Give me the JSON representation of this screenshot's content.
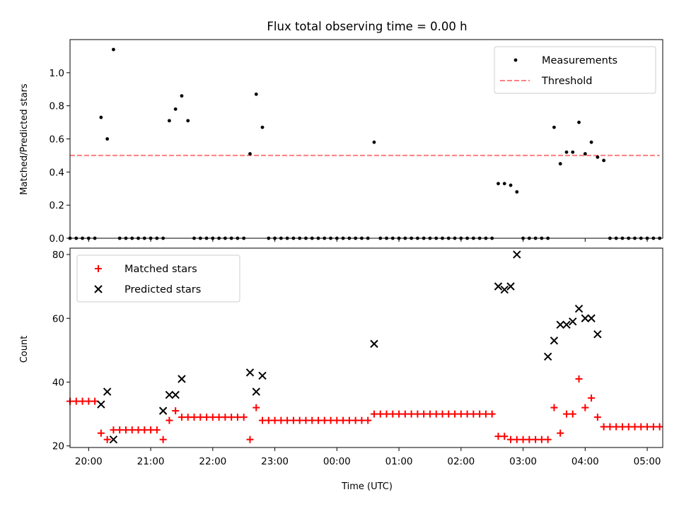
{
  "title": "Flux total observing time = 0.00 h",
  "chart_data": [
    {
      "type": "scatter",
      "ylabel": "Matched/Predicted stars",
      "ylim": [
        0,
        1.2
      ],
      "yticks": [
        0.0,
        0.2,
        0.4,
        0.6,
        0.8,
        1.0
      ],
      "ytick_labels": [
        "0.0",
        "0.2",
        "0.4",
        "0.6",
        "0.8",
        "1.0"
      ],
      "legend_position": "top-right",
      "legend": [
        {
          "label": "Measurements",
          "marker": "dot",
          "color": "#000000"
        },
        {
          "label": "Threshold",
          "marker": "dashed-line",
          "color": "#ff7f7f"
        }
      ],
      "threshold": {
        "value": 0.5,
        "x_start": "19:42",
        "x_end": "05:12",
        "color": "#ff7f7f"
      },
      "series": [
        {
          "name": "Measurements",
          "color": "#000000",
          "x": [
            "19:42",
            "19:48",
            "19:54",
            "20:00",
            "20:06",
            "20:12",
            "20:18",
            "20:24",
            "20:30",
            "20:36",
            "20:42",
            "20:48",
            "20:54",
            "21:00",
            "21:06",
            "21:12",
            "21:18",
            "21:24",
            "21:30",
            "21:36",
            "21:42",
            "21:48",
            "21:54",
            "22:00",
            "22:06",
            "22:12",
            "22:18",
            "22:24",
            "22:30",
            "22:36",
            "22:42",
            "22:48",
            "22:54",
            "23:00",
            "23:06",
            "23:12",
            "23:18",
            "23:24",
            "23:30",
            "23:36",
            "23:42",
            "23:48",
            "23:54",
            "00:00",
            "00:06",
            "00:12",
            "00:18",
            "00:24",
            "00:30",
            "00:36",
            "00:42",
            "00:48",
            "00:54",
            "01:00",
            "01:06",
            "01:12",
            "01:18",
            "01:24",
            "01:30",
            "01:36",
            "01:42",
            "01:48",
            "01:54",
            "02:00",
            "02:06",
            "02:12",
            "02:18",
            "02:24",
            "02:30",
            "02:36",
            "02:42",
            "02:48",
            "02:54",
            "03:00",
            "03:06",
            "03:12",
            "03:18",
            "03:24",
            "03:30",
            "03:36",
            "03:42",
            "03:48",
            "03:54",
            "04:00",
            "04:06",
            "04:12",
            "04:18",
            "04:24",
            "04:30",
            "04:36",
            "04:42",
            "04:48",
            "04:54",
            "05:00",
            "05:06",
            "05:12"
          ],
          "y": [
            0,
            0,
            0,
            0,
            0,
            0.73,
            0.6,
            1.14,
            0,
            0,
            0,
            0,
            0,
            0,
            0,
            0,
            0.71,
            0.78,
            0.86,
            0.71,
            0,
            0,
            0,
            0,
            0,
            0,
            0,
            0,
            0,
            0.51,
            0.87,
            0.67,
            0,
            0,
            0,
            0,
            0,
            0,
            0,
            0,
            0,
            0,
            0,
            0,
            0,
            0,
            0,
            0,
            0,
            0.58,
            0,
            0,
            0,
            0,
            0,
            0,
            0,
            0,
            0,
            0,
            0,
            0,
            0,
            0,
            0,
            0,
            0,
            0,
            0,
            0.33,
            0.33,
            0.32,
            0.28,
            0,
            0,
            0,
            0,
            0,
            0.67,
            0.45,
            0.52,
            0.52,
            0.7,
            0.51,
            0.58,
            0.49,
            0.47,
            0,
            0,
            0,
            0,
            0,
            0,
            0,
            0,
            0
          ]
        }
      ]
    },
    {
      "type": "scatter",
      "xlabel": "Time (UTC)",
      "ylabel": "Count",
      "ylim": [
        19.5,
        82
      ],
      "yticks": [
        20,
        40,
        60,
        80
      ],
      "ytick_labels": [
        "20",
        "40",
        "60",
        "80"
      ],
      "xticks": [
        "20:00",
        "21:00",
        "22:00",
        "23:00",
        "00:00",
        "01:00",
        "02:00",
        "03:00",
        "04:00",
        "05:00"
      ],
      "legend_position": "top-left",
      "legend": [
        {
          "label": "Matched stars",
          "marker": "plus",
          "color": "#ff0000"
        },
        {
          "label": "Predicted stars",
          "marker": "x",
          "color": "#000000"
        }
      ],
      "series": [
        {
          "name": "Matched stars",
          "color": "#ff0000",
          "x": [
            "19:42",
            "19:48",
            "19:54",
            "20:00",
            "20:06",
            "20:12",
            "20:18",
            "20:24",
            "20:30",
            "20:36",
            "20:42",
            "20:48",
            "20:54",
            "21:00",
            "21:06",
            "21:12",
            "21:18",
            "21:24",
            "21:30",
            "21:36",
            "21:42",
            "21:48",
            "21:54",
            "22:00",
            "22:06",
            "22:12",
            "22:18",
            "22:24",
            "22:30",
            "22:36",
            "22:42",
            "22:48",
            "22:54",
            "23:00",
            "23:06",
            "23:12",
            "23:18",
            "23:24",
            "23:30",
            "23:36",
            "23:42",
            "23:48",
            "23:54",
            "00:00",
            "00:06",
            "00:12",
            "00:18",
            "00:24",
            "00:30",
            "00:36",
            "00:42",
            "00:48",
            "00:54",
            "01:00",
            "01:06",
            "01:12",
            "01:18",
            "01:24",
            "01:30",
            "01:36",
            "01:42",
            "01:48",
            "01:54",
            "02:00",
            "02:06",
            "02:12",
            "02:18",
            "02:24",
            "02:30",
            "02:36",
            "02:42",
            "02:48",
            "02:54",
            "03:00",
            "03:06",
            "03:12",
            "03:18",
            "03:24",
            "03:30",
            "03:36",
            "03:42",
            "03:48",
            "03:54",
            "04:00",
            "04:06",
            "04:12",
            "04:18",
            "04:24",
            "04:30",
            "04:36",
            "04:42",
            "04:48",
            "04:54",
            "05:00",
            "05:06",
            "05:12"
          ],
          "y": [
            34,
            34,
            34,
            34,
            34,
            24,
            22,
            25,
            25,
            25,
            25,
            25,
            25,
            25,
            25,
            22,
            28,
            31,
            29,
            29,
            29,
            29,
            29,
            29,
            29,
            29,
            29,
            29,
            29,
            22,
            32,
            28,
            28,
            28,
            28,
            28,
            28,
            28,
            28,
            28,
            28,
            28,
            28,
            28,
            28,
            28,
            28,
            28,
            28,
            30,
            30,
            30,
            30,
            30,
            30,
            30,
            30,
            30,
            30,
            30,
            30,
            30,
            30,
            30,
            30,
            30,
            30,
            30,
            30,
            23,
            23,
            22,
            22,
            22,
            22,
            22,
            22,
            22,
            32,
            24,
            30,
            30,
            41,
            32,
            35,
            29,
            26,
            26,
            26,
            26,
            26,
            26,
            26,
            26,
            26,
            26
          ]
        },
        {
          "name": "Predicted stars",
          "color": "#000000",
          "x": [
            "20:12",
            "20:18",
            "20:24",
            "21:12",
            "21:18",
            "21:24",
            "21:30",
            "22:36",
            "22:42",
            "22:48",
            "00:36",
            "02:36",
            "02:42",
            "02:48",
            "02:54",
            "03:24",
            "03:30",
            "03:36",
            "03:42",
            "03:48",
            "03:54",
            "04:00",
            "04:06",
            "04:12"
          ],
          "y": [
            33,
            37,
            22,
            31,
            36,
            36,
            41,
            43,
            37,
            42,
            52,
            70,
            69,
            70,
            80,
            48,
            53,
            58,
            58,
            59,
            63,
            60,
            60,
            55
          ]
        }
      ]
    }
  ]
}
